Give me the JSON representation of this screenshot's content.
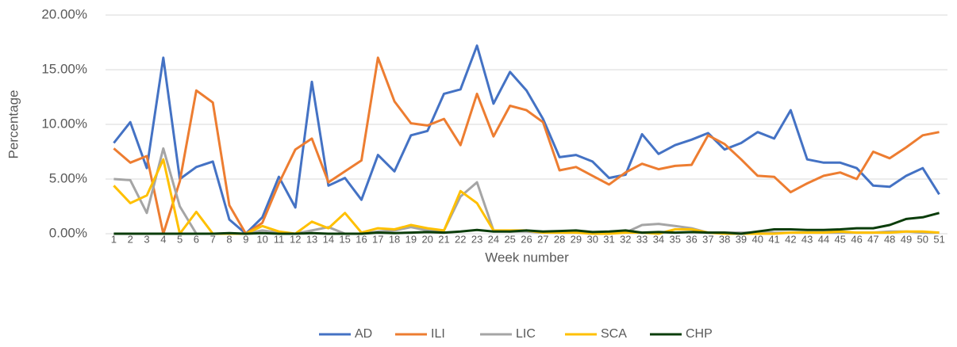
{
  "chart_data": {
    "type": "line",
    "x_label": "Week number",
    "y_label": "Percentage",
    "categories": [
      "1",
      "2",
      "3",
      "4",
      "5",
      "6",
      "7",
      "8",
      "9",
      "10",
      "11",
      "12",
      "13",
      "14",
      "15",
      "16",
      "17",
      "18",
      "19",
      "20",
      "21",
      "22",
      "23",
      "24",
      "25",
      "26",
      "27",
      "28",
      "29",
      "30",
      "31",
      "32",
      "33",
      "34",
      "35",
      "36",
      "37",
      "38",
      "39",
      "40",
      "41",
      "42",
      "43",
      "44",
      "45",
      "46",
      "47",
      "48",
      "49",
      "50",
      "51"
    ],
    "ylim": [
      0,
      20
    ],
    "yticks": [
      {
        "value": 0,
        "label": "0.00%"
      },
      {
        "value": 5,
        "label": "5.00%"
      },
      {
        "value": 10,
        "label": "10.00%"
      },
      {
        "value": 15,
        "label": "15.00%"
      },
      {
        "value": 20,
        "label": "20.00%"
      }
    ],
    "grid": true,
    "legend": "bottom",
    "series": [
      {
        "name": "AD",
        "color": "#4472c4",
        "values": [
          8.3,
          10.2,
          6.0,
          16.1,
          5.0,
          6.1,
          6.6,
          1.3,
          0.0,
          1.5,
          5.2,
          2.4,
          13.9,
          4.4,
          5.1,
          3.1,
          7.2,
          5.7,
          9.0,
          9.4,
          12.8,
          13.2,
          17.2,
          11.9,
          14.8,
          13.1,
          10.5,
          7.0,
          7.2,
          6.6,
          5.1,
          5.4,
          9.1,
          7.3,
          8.1,
          8.6,
          9.2,
          7.7,
          8.3,
          9.3,
          8.7,
          11.3,
          6.8,
          6.5,
          6.5,
          6.0,
          4.4,
          4.3,
          5.3,
          6.0,
          3.6
        ]
      },
      {
        "name": "ILI",
        "color": "#ed7d31",
        "values": [
          7.8,
          6.5,
          7.1,
          0.0,
          4.8,
          13.1,
          12.0,
          2.6,
          0.0,
          1.0,
          4.6,
          7.7,
          8.7,
          4.7,
          5.7,
          6.7,
          16.1,
          12.1,
          10.1,
          9.9,
          10.5,
          8.1,
          12.8,
          8.9,
          11.7,
          11.3,
          10.2,
          5.8,
          6.1,
          5.3,
          4.5,
          5.6,
          6.4,
          5.9,
          6.2,
          6.3,
          9.0,
          8.2,
          6.8,
          5.3,
          5.2,
          3.8,
          4.6,
          5.3,
          5.6,
          5.0,
          7.5,
          6.9,
          7.9,
          9.0,
          9.3
        ]
      },
      {
        "name": "LIC",
        "color": "#a5a5a5",
        "values": [
          5.0,
          4.9,
          1.9,
          7.8,
          2.5,
          0,
          0,
          0,
          0,
          0.3,
          0.1,
          0,
          0.3,
          0.6,
          0,
          0,
          0.2,
          0.3,
          0.6,
          0.3,
          0.3,
          3.4,
          4.7,
          0.3,
          0.2,
          0.2,
          0.1,
          0.1,
          0.1,
          0.1,
          0.1,
          0.1,
          0.8,
          0.9,
          0.7,
          0.5,
          0.1,
          0.1,
          0.1,
          0.1,
          0.1,
          0.1,
          0.1,
          0.1,
          0.1,
          0.1,
          0.1,
          0.2,
          0.2,
          0.1,
          0.1
        ]
      },
      {
        "name": "SCA",
        "color": "#ffc000",
        "values": [
          4.4,
          2.8,
          3.5,
          6.8,
          0,
          2.0,
          0,
          0,
          0,
          0.7,
          0.2,
          0,
          1.1,
          0.5,
          1.9,
          0.1,
          0.5,
          0.4,
          0.8,
          0.5,
          0.3,
          3.9,
          2.8,
          0.3,
          0.3,
          0.3,
          0.1,
          0.1,
          0.1,
          0,
          0,
          0.1,
          0.1,
          0,
          0.4,
          0.4,
          0.1,
          0,
          0,
          0,
          0,
          0.1,
          0.1,
          0.1,
          0.2,
          0.1,
          0.1,
          0.1,
          0.2,
          0.2,
          0.1
        ]
      },
      {
        "name": "CHP",
        "color": "#0b3d0b",
        "values": [
          0,
          0,
          0,
          0,
          0,
          0,
          0,
          0.05,
          0,
          0.05,
          0,
          0,
          0.05,
          0,
          0,
          0,
          0.1,
          0.05,
          0.1,
          0.15,
          0.1,
          0.2,
          0.35,
          0.2,
          0.2,
          0.3,
          0.2,
          0.25,
          0.3,
          0.15,
          0.2,
          0.3,
          0.1,
          0.15,
          0.1,
          0.15,
          0.1,
          0.1,
          0,
          0.2,
          0.4,
          0.4,
          0.35,
          0.35,
          0.4,
          0.5,
          0.5,
          0.8,
          1.35,
          1.5,
          1.9
        ]
      }
    ]
  }
}
